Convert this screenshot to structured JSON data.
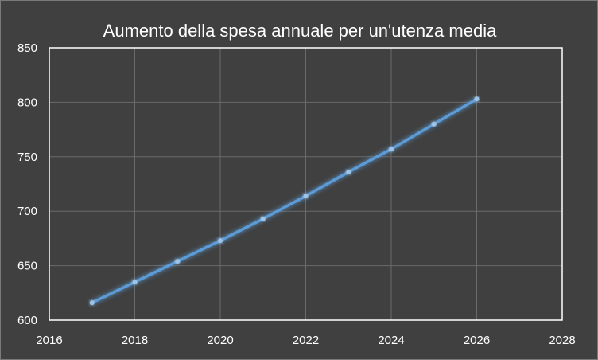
{
  "chart_data": {
    "type": "line",
    "title": "Aumento della spesa annuale per un'utenza media",
    "xlabel": "",
    "ylabel": "",
    "xlim": [
      2016,
      2028
    ],
    "ylim": [
      600,
      850
    ],
    "x_ticks": [
      "2016",
      "2018",
      "2020",
      "2022",
      "2024",
      "2026",
      "2028"
    ],
    "y_ticks": [
      "600",
      "650",
      "700",
      "750",
      "800",
      "850"
    ],
    "grid": true,
    "legend": "none",
    "colors": {
      "line": "#5b9bd5",
      "marker": "#9dc3e6",
      "grid": "#6a6a6a",
      "plot_border": "#ffffff",
      "background": "#404040"
    },
    "series": [
      {
        "x": [
          2017,
          2018,
          2019,
          2020,
          2021,
          2022,
          2023,
          2024,
          2025,
          2026
        ],
        "values": [
          616,
          635,
          654,
          673,
          693,
          714,
          736,
          757,
          780,
          803
        ]
      }
    ]
  }
}
